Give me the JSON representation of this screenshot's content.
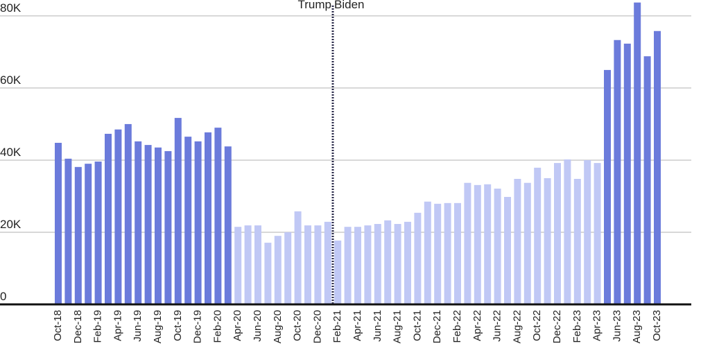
{
  "chart_data": {
    "type": "bar",
    "categories": [
      "Oct-18",
      null,
      "Dec-18",
      null,
      "Feb-19",
      null,
      "Apr-19",
      null,
      "Jun-19",
      null,
      "Aug-19",
      null,
      "Oct-19",
      null,
      "Dec-19",
      null,
      "Feb-20",
      null,
      "Apr-20",
      null,
      "Jun-20",
      null,
      "Aug-20",
      null,
      "Oct-20",
      null,
      "Dec-20",
      null,
      "Feb-21",
      null,
      "Apr-21",
      null,
      "Jun-21",
      null,
      "Aug-21",
      null,
      "Oct-21",
      null,
      "Dec-21",
      null,
      "Feb-22",
      null,
      "Apr-22",
      null,
      "Jun-22",
      null,
      "Aug-22",
      null,
      "Oct-22",
      null,
      "Dec-22",
      null,
      "Feb-23",
      null,
      "Apr-23",
      null,
      "Jun-23",
      null,
      "Aug-23",
      null,
      "Oct-23"
    ],
    "values": [
      44800,
      40400,
      38100,
      39000,
      39600,
      47300,
      48500,
      50000,
      45200,
      44200,
      43500,
      42500,
      51700,
      46500,
      45200,
      47700,
      49000,
      43800,
      21500,
      21900,
      21900,
      17100,
      19000,
      20000,
      25800,
      21900,
      21900,
      22900,
      17700,
      21500,
      21500,
      21900,
      22300,
      23300,
      22300,
      22900,
      25400,
      28500,
      27900,
      28100,
      28100,
      33700,
      33100,
      33300,
      32100,
      29800,
      34800,
      33700,
      37900,
      35000,
      39200,
      40200,
      34800,
      40000,
      39200,
      65000,
      73300,
      72300,
      83700,
      68800,
      75800
    ],
    "colors": [
      "#6b7bdb",
      "#6b7bdb",
      "#6b7bdb",
      "#6b7bdb",
      "#6b7bdb",
      "#6b7bdb",
      "#6b7bdb",
      "#6b7bdb",
      "#6b7bdb",
      "#6b7bdb",
      "#6b7bdb",
      "#6b7bdb",
      "#6b7bdb",
      "#6b7bdb",
      "#6b7bdb",
      "#6b7bdb",
      "#6b7bdb",
      "#6b7bdb",
      "#c0c8f5",
      "#c0c8f5",
      "#c0c8f5",
      "#c0c8f5",
      "#c0c8f5",
      "#c0c8f5",
      "#c0c8f5",
      "#c0c8f5",
      "#c0c8f5",
      "#c0c8f5",
      "#c0c8f5",
      "#c0c8f5",
      "#c0c8f5",
      "#c0c8f5",
      "#c0c8f5",
      "#c0c8f5",
      "#c0c8f5",
      "#c0c8f5",
      "#c0c8f5",
      "#c0c8f5",
      "#c0c8f5",
      "#c0c8f5",
      "#c0c8f5",
      "#c0c8f5",
      "#c0c8f5",
      "#c0c8f5",
      "#c0c8f5",
      "#c0c8f5",
      "#c0c8f5",
      "#c0c8f5",
      "#c0c8f5",
      "#c0c8f5",
      "#c0c8f5",
      "#c0c8f5",
      "#c0c8f5",
      "#c0c8f5",
      "#c0c8f5",
      "#6b7bdb",
      "#6b7bdb",
      "#6b7bdb",
      "#6b7bdb",
      "#6b7bdb",
      "#6b7bdb"
    ],
    "ylim": [
      0,
      84400
    ],
    "yticks": [
      0,
      {
        "value": 20000,
        "label": "20K"
      },
      {
        "value": 40000,
        "label": "40K"
      },
      {
        "value": 60000,
        "label": "60K"
      },
      {
        "value": 80000,
        "label": "80K"
      }
    ],
    "grid": true,
    "annotations": [
      "Trump",
      "Biden"
    ]
  }
}
